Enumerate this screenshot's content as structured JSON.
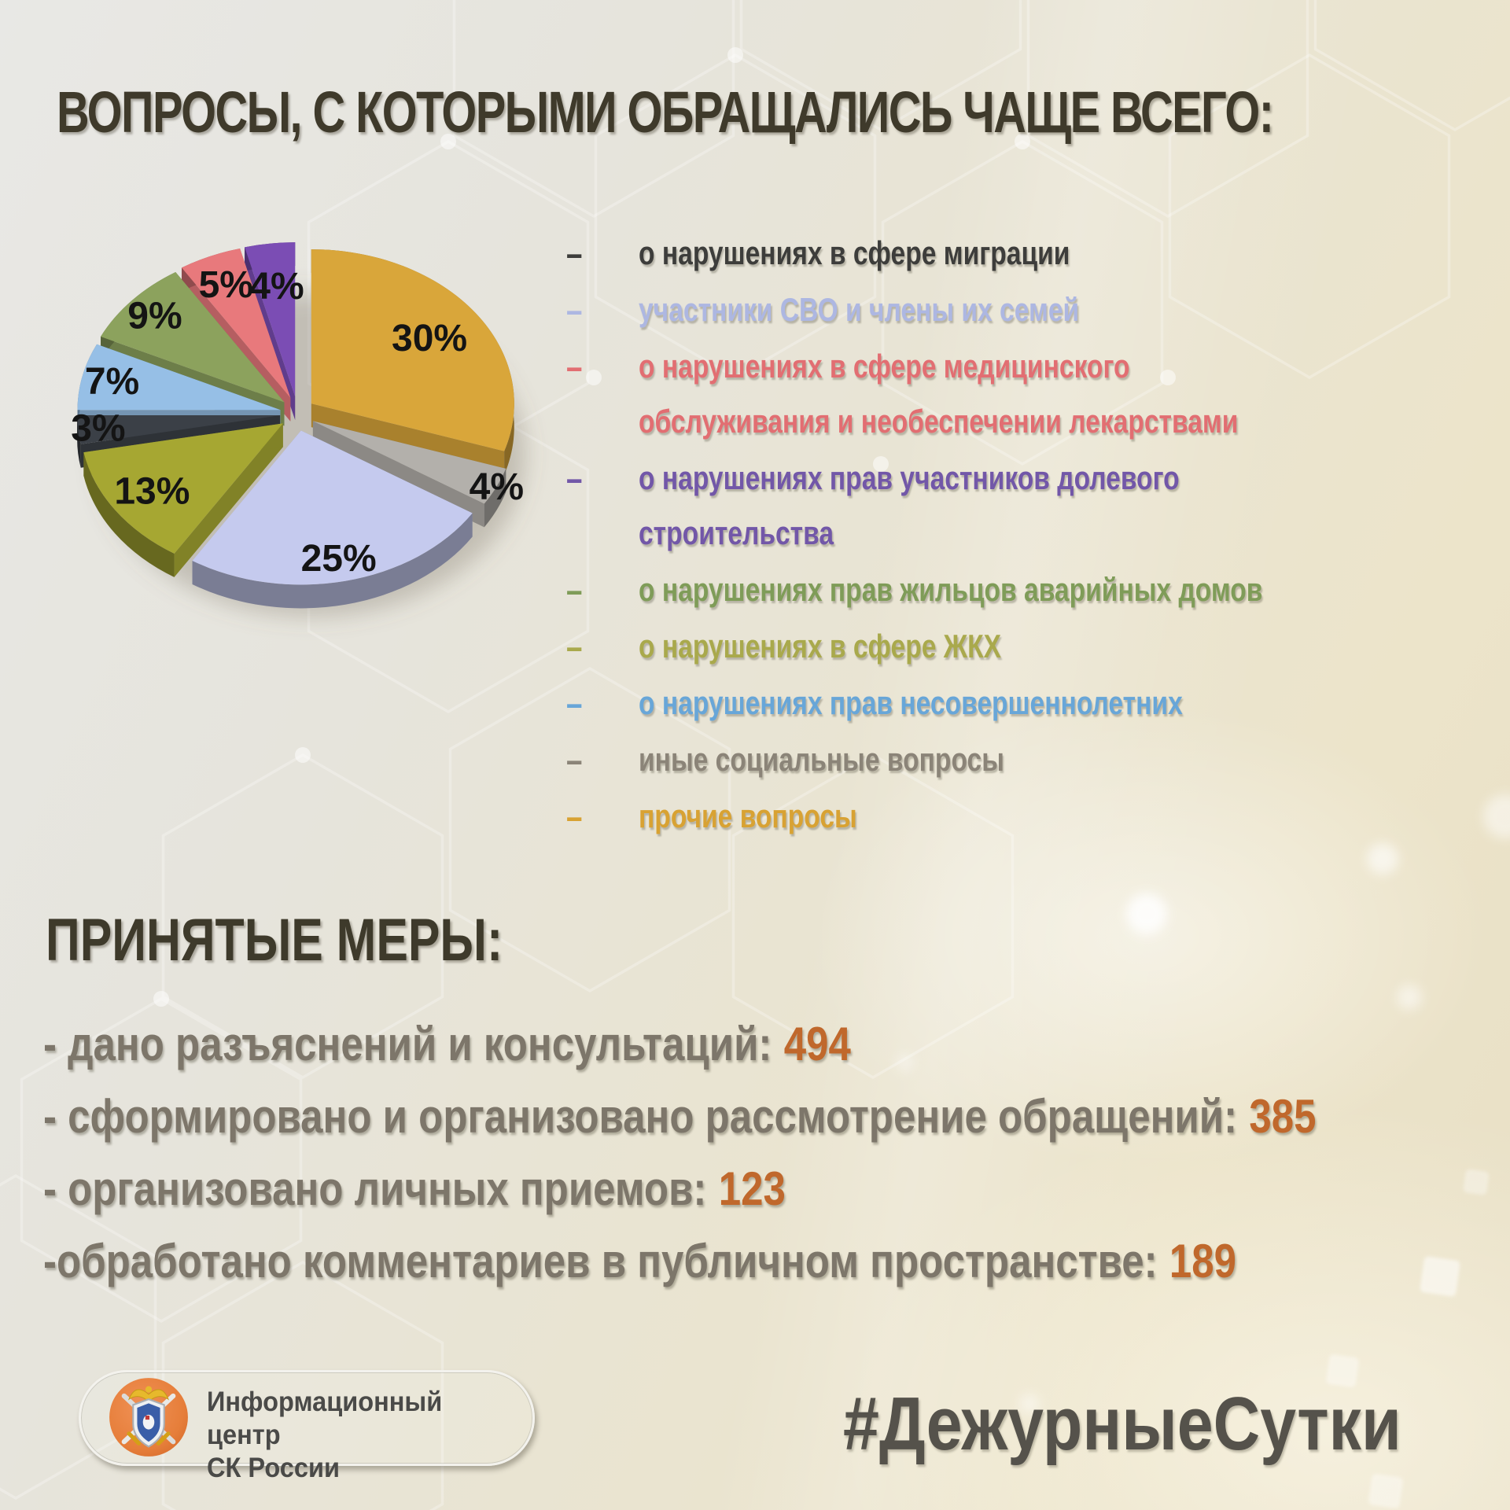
{
  "title": "ВОПРОСЫ, С КОТОРЫМИ ОБРАЩАЛИСЬ ЧАЩЕ ВСЕГО:",
  "chart_data": {
    "type": "pie",
    "title": "ВОПРОСЫ, С КОТОРЫМИ ОБРАЩАЛИСЬ ЧАЩЕ ВСЕГО:",
    "unit": "%",
    "style": "3d-exploded",
    "direction": "clockwise",
    "start_angle_deg": 0,
    "slices": [
      {
        "category": "прочие вопросы",
        "value": 30,
        "color": "#D9A63A"
      },
      {
        "category": "иные социальные вопросы",
        "value": 4,
        "color": "#B3B0AB"
      },
      {
        "category": "участники СВО и члены их семей",
        "value": 25,
        "color": "#C5CAEE"
      },
      {
        "category": "о нарушениях в сфере ЖКХ",
        "value": 13,
        "color": "#A6A732"
      },
      {
        "category": "о нарушениях в сфере миграции",
        "value": 3,
        "color": "#3B4047"
      },
      {
        "category": "о нарушениях прав несовершеннолетних",
        "value": 7,
        "color": "#96BFE6"
      },
      {
        "category": "о нарушениях прав жильцов аварийных домов",
        "value": 9,
        "color": "#8CA25D"
      },
      {
        "category": "о нарушениях в сфере медицинского обслуживания и необеспечении лекарствами",
        "value": 5,
        "color": "#E8797C"
      },
      {
        "category": "о нарушениях прав участников долевого строительства",
        "value": 4,
        "color": "#7B4DB4"
      }
    ],
    "label_color": "#141414"
  },
  "legend": {
    "dash": "–",
    "items": [
      {
        "label": "о нарушениях в сфере миграции",
        "color": "#3D3D3B"
      },
      {
        "label": "участники СВО и члены их семей",
        "color": "#ADB7E2"
      },
      {
        "label": "о нарушениях в сфере медицинского\nобслуживания и необеспечении лекарствами",
        "color": "#E26E72"
      },
      {
        "label": "о нарушениях прав участников долевого\nстроительства",
        "color": "#7257A8"
      },
      {
        "label": "о нарушениях прав жильцов аварийных домов",
        "color": "#7F9C58"
      },
      {
        "label": "о нарушениях в сфере ЖКХ",
        "color": "#A9A94C"
      },
      {
        "label": "о нарушениях прав несовершеннолетних",
        "color": "#68A6D8"
      },
      {
        "label": "иные социальные вопросы",
        "color": "#8B8478"
      },
      {
        "label": "прочие вопросы",
        "color": "#D8A233"
      }
    ]
  },
  "measures": {
    "heading": "ПРИНЯТЫЕ МЕРЫ:",
    "value_color": "#C0682C",
    "items": [
      {
        "label": "- дано разъяснений и консультаций:",
        "value": "494"
      },
      {
        "label": "- сформировано и организовано рассмотрение обращений:",
        "value": "385"
      },
      {
        "label": "- организовано личных приемов:",
        "value": "123"
      },
      {
        "label": "-обработано комментариев в публичном пространстве:",
        "value": "189"
      }
    ]
  },
  "footer": {
    "org_name": "Информационный центр\nСК России",
    "hashtag": "#ДежурныеСутки"
  },
  "colors": {
    "title": "#3F3A2B",
    "background_top": "#E8E8E5",
    "background_bottom": "#E8DFC5",
    "measures_text": "#7D766A",
    "hashtag": "#55524B"
  }
}
